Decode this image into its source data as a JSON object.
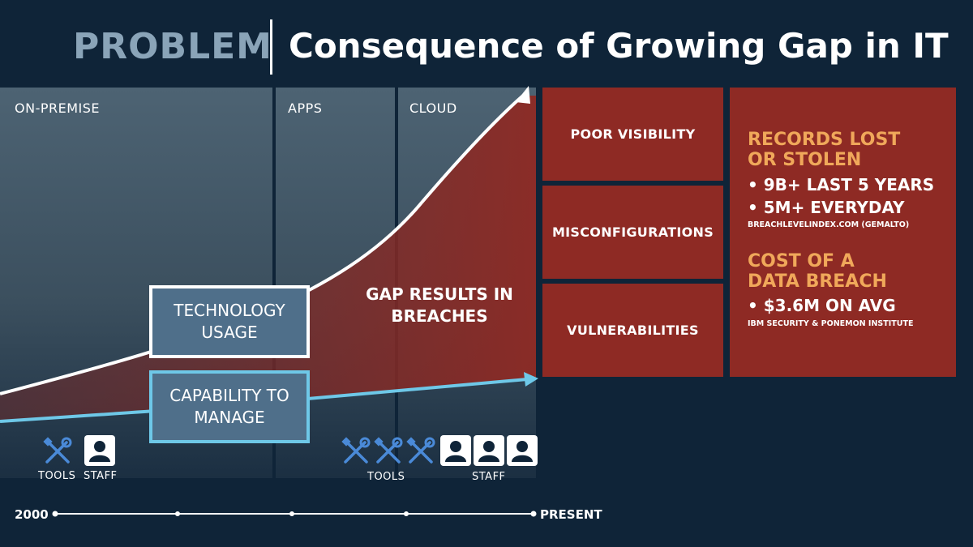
{
  "header": {
    "section": "PROBLEM",
    "title": "Consequence of Growing Gap in IT"
  },
  "columns": [
    {
      "label": "ON-PREMISE"
    },
    {
      "label": "APPS"
    },
    {
      "label": "CLOUD"
    }
  ],
  "chart": {
    "technology_label": "TECHNOLOGY\nUSAGE",
    "capability_label": "CAPABILITY TO\nMANAGE",
    "gap_label": "GAP RESULTS IN\nBREACHES",
    "colors": {
      "technology_line": "#ffffff",
      "capability_line": "#6ec8e8",
      "gap_fill": "#8e2a24"
    }
  },
  "consequences": [
    {
      "label": "POOR VISIBILITY"
    },
    {
      "label": "MISCONFIGURATIONS"
    },
    {
      "label": "VULNERABILITIES"
    }
  ],
  "stats": {
    "records_heading": "RECORDS LOST\nOR STOLEN",
    "records_bullets": [
      "• 9B+ LAST 5 YEARS",
      "• 5M+ EVERYDAY"
    ],
    "records_source": "BREACHLEVELINDEX.COM (GEMALTO)",
    "cost_heading": "COST OF A\nDATA BREACH",
    "cost_bullets": [
      "• $3.6M ON AVG"
    ],
    "cost_source": "IBM SECURITY & PONEMON INSTITUTE",
    "heading_color": "#f0a85a"
  },
  "resources_2000": {
    "tools_label": "TOOLS",
    "staff_label": "STAFF",
    "tools_count": 1,
    "staff_count": 1
  },
  "resources_present": {
    "tools_label": "TOOLS",
    "staff_label": "STAFF",
    "tools_count": 3,
    "staff_count": 3
  },
  "timeline": {
    "start": "2000",
    "end": "PRESENT"
  }
}
